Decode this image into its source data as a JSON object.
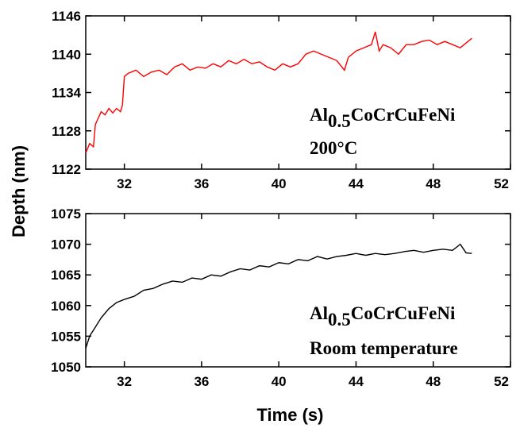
{
  "chart_data": [
    {
      "type": "line",
      "ylabel": "Depth (nm)",
      "x": [
        30.0,
        30.2,
        30.4,
        30.5,
        30.8,
        31.0,
        31.2,
        31.4,
        31.6,
        31.8,
        31.9,
        32.0,
        32.2,
        32.6,
        33.0,
        33.4,
        33.8,
        34.2,
        34.6,
        35.0,
        35.4,
        35.8,
        36.2,
        36.6,
        37.0,
        37.4,
        37.8,
        38.2,
        38.6,
        39.0,
        39.4,
        39.8,
        40.2,
        40.6,
        41.0,
        41.4,
        41.8,
        42.2,
        42.6,
        43.0,
        43.4,
        43.6,
        44.0,
        44.4,
        44.8,
        45.0,
        45.2,
        45.4,
        45.8,
        46.2,
        46.6,
        47.0,
        47.4,
        47.8,
        48.2,
        48.6,
        49.0,
        49.4,
        49.8,
        50.0
      ],
      "series": [
        {
          "color": "#ff0000",
          "values": [
            1124.5,
            1126,
            1125.5,
            1129,
            1131,
            1130.5,
            1131.5,
            1130.8,
            1131.5,
            1131,
            1132,
            1136.5,
            1137,
            1137.5,
            1136.5,
            1137.2,
            1137.5,
            1136.8,
            1138,
            1138.5,
            1137.5,
            1138,
            1137.8,
            1138.5,
            1138,
            1139,
            1138.5,
            1139.2,
            1138.5,
            1138.8,
            1138,
            1137.5,
            1138.5,
            1138,
            1138.5,
            1140,
            1140.5,
            1140,
            1139.5,
            1139,
            1137.5,
            1139.5,
            1140.5,
            1141,
            1141.5,
            1143.5,
            1140.5,
            1141.5,
            1141,
            1140,
            1141.5,
            1141.5,
            1142,
            1142.2,
            1141.5,
            1142,
            1141.5,
            1141,
            1142,
            1142.5
          ]
        }
      ],
      "xlim": [
        30,
        52
      ],
      "xticks": [
        32,
        36,
        40,
        44,
        48,
        52
      ],
      "ylim": [
        1122,
        1146
      ],
      "yticks": [
        1122,
        1128,
        1134,
        1140,
        1146
      ],
      "material": {
        "base": "Al",
        "subscript": "0.5",
        "rest": "CoCrCuFeNi"
      },
      "condition": "200°C"
    },
    {
      "type": "line",
      "xlabel": "Time (s)",
      "x": [
        30.0,
        30.2,
        30.5,
        30.8,
        31.2,
        31.6,
        32.0,
        32.5,
        33.0,
        33.5,
        34.0,
        34.5,
        35.0,
        35.5,
        36.0,
        36.5,
        37.0,
        37.5,
        38.0,
        38.5,
        39.0,
        39.5,
        40.0,
        40.5,
        41.0,
        41.5,
        42.0,
        42.5,
        43.0,
        43.5,
        44.0,
        44.5,
        45.0,
        45.5,
        46.0,
        46.5,
        47.0,
        47.5,
        48.0,
        48.5,
        49.0,
        49.4,
        49.7,
        50.0
      ],
      "series": [
        {
          "color": "#000000",
          "values": [
            1053,
            1055,
            1056.5,
            1058,
            1059.5,
            1060.5,
            1061,
            1061.5,
            1062.5,
            1062.8,
            1063.5,
            1064,
            1063.8,
            1064.5,
            1064.3,
            1065,
            1064.8,
            1065.5,
            1066,
            1065.8,
            1066.5,
            1066.3,
            1067,
            1066.8,
            1067.5,
            1067.3,
            1068,
            1067.6,
            1068,
            1068.2,
            1068.5,
            1068.2,
            1068.5,
            1068.3,
            1068.5,
            1068.8,
            1069,
            1068.7,
            1069,
            1069.2,
            1069,
            1070,
            1068.6,
            1068.5
          ]
        }
      ],
      "xlim": [
        30,
        52
      ],
      "xticks": [
        32,
        36,
        40,
        44,
        48,
        52
      ],
      "ylim": [
        1050,
        1075
      ],
      "yticks": [
        1050,
        1055,
        1060,
        1065,
        1070,
        1075
      ],
      "material": {
        "base": "Al",
        "subscript": "0.5",
        "rest": "CoCrCuFeNi"
      },
      "condition": "Room temperature"
    }
  ]
}
